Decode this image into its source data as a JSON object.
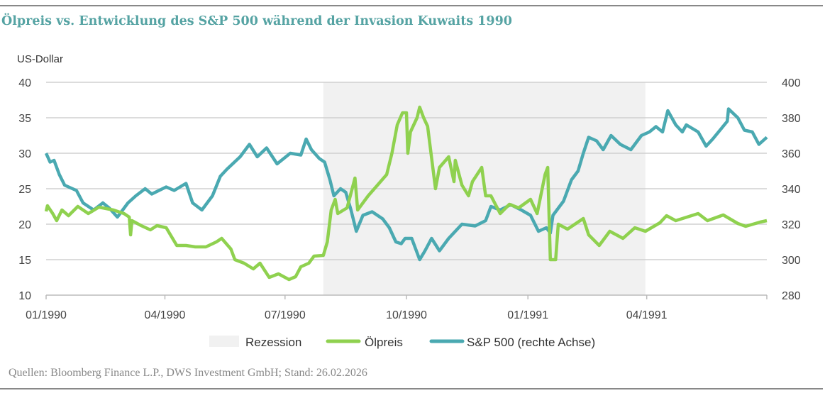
{
  "title": "Ölpreis vs. Entwicklung des S&P 500 während der Invasion Kuwaits 1990",
  "source": "Quellen: Bloomberg Finance L.P., DWS Investment GmbH; Stand: 26.02.2026",
  "chart_data": {
    "type": "line",
    "ylabel": "US-Dollar",
    "xlim": [
      "1990-01-01",
      "1991-07-01"
    ],
    "ylim": [
      10,
      40
    ],
    "y2lim": [
      280,
      400
    ],
    "x_ticks": [
      [
        "1990-01-01",
        "01/1990"
      ],
      [
        "1990-04-01",
        "04/1990"
      ],
      [
        "1990-07-01",
        "07/1990"
      ],
      [
        "1990-10-01",
        "10/1990"
      ],
      [
        "1991-01-01",
        "01/1991"
      ],
      [
        "1991-04-01",
        "04/1991"
      ]
    ],
    "y_ticks": [
      "10",
      "15",
      "20",
      "25",
      "30",
      "35",
      "40"
    ],
    "y2_ticks": [
      "280",
      "300",
      "320",
      "340",
      "360",
      "380",
      "400"
    ],
    "grid": true,
    "legend": "bottom",
    "recession": {
      "name": "Rezession",
      "start": "1990-07-30",
      "end": "1991-03-31",
      "color": "#f1f1f1"
    },
    "series": [
      {
        "name": "Ölpreis",
        "axis": "left",
        "color": "#8fd14f",
        "points": [
          [
            "1990-01-01",
            21.8
          ],
          [
            "1990-01-02",
            22.6
          ],
          [
            "1990-01-06",
            21.5
          ],
          [
            "1990-01-09",
            20.5
          ],
          [
            "1990-01-13",
            22
          ],
          [
            "1990-01-18",
            21.2
          ],
          [
            "1990-01-25",
            22.5
          ],
          [
            "1990-02-02",
            21.5
          ],
          [
            "1990-02-10",
            22.4
          ],
          [
            "1990-02-21",
            22
          ],
          [
            "1990-03-01",
            21.5
          ],
          [
            "1990-03-05",
            21
          ],
          [
            "1990-03-06",
            18.5
          ],
          [
            "1990-03-07",
            20.5
          ],
          [
            "1990-03-14",
            19.8
          ],
          [
            "1990-03-21",
            19.2
          ],
          [
            "1990-03-26",
            19.8
          ],
          [
            "1990-04-02",
            19.5
          ],
          [
            "1990-04-10",
            17
          ],
          [
            "1990-04-17",
            17
          ],
          [
            "1990-04-24",
            16.8
          ],
          [
            "1990-05-02",
            16.8
          ],
          [
            "1990-05-10",
            17.5
          ],
          [
            "1990-05-14",
            18
          ],
          [
            "1990-05-21",
            16.5
          ],
          [
            "1990-05-24",
            15
          ],
          [
            "1990-05-31",
            14.5
          ],
          [
            "1990-06-07",
            13.7
          ],
          [
            "1990-06-12",
            14.5
          ],
          [
            "1990-06-19",
            12.5
          ],
          [
            "1990-06-26",
            13
          ],
          [
            "1990-07-04",
            12.2
          ],
          [
            "1990-07-09",
            12.6
          ],
          [
            "1990-07-13",
            14
          ],
          [
            "1990-07-19",
            14.5
          ],
          [
            "1990-07-23",
            15.5
          ],
          [
            "1990-07-30",
            15.6
          ],
          [
            "1990-08-02",
            17.5
          ],
          [
            "1990-08-05",
            22
          ],
          [
            "1990-08-08",
            23.5
          ],
          [
            "1990-08-10",
            21.5
          ],
          [
            "1990-08-17",
            22.3
          ],
          [
            "1990-08-23",
            26.5
          ],
          [
            "1990-08-25",
            22
          ],
          [
            "1990-09-02",
            24
          ],
          [
            "1990-09-09",
            25.5
          ],
          [
            "1990-09-16",
            27
          ],
          [
            "1990-09-20",
            30
          ],
          [
            "1990-09-24",
            34
          ],
          [
            "1990-09-28",
            35.7
          ],
          [
            "1990-10-01",
            35.7
          ],
          [
            "1990-10-02",
            30
          ],
          [
            "1990-10-04",
            33
          ],
          [
            "1990-10-09",
            35
          ],
          [
            "1990-10-11",
            36.5
          ],
          [
            "1990-10-14",
            35
          ],
          [
            "1990-10-17",
            33.8
          ],
          [
            "1990-10-23",
            25
          ],
          [
            "1990-10-26",
            28
          ],
          [
            "1990-11-02",
            29.5
          ],
          [
            "1990-11-06",
            26
          ],
          [
            "1990-11-07",
            29
          ],
          [
            "1990-11-12",
            25.5
          ],
          [
            "1990-11-17",
            24
          ],
          [
            "1990-11-20",
            26
          ],
          [
            "1990-11-27",
            28
          ],
          [
            "1990-11-30",
            24
          ],
          [
            "1990-12-04",
            24
          ],
          [
            "1990-12-11",
            21.5
          ],
          [
            "1990-12-18",
            22.8
          ],
          [
            "1990-12-25",
            22.3
          ],
          [
            "1991-01-03",
            23.5
          ],
          [
            "1991-01-08",
            21.5
          ],
          [
            "1991-01-14",
            27
          ],
          [
            "1991-01-16",
            28
          ],
          [
            "1991-01-18",
            15
          ],
          [
            "1991-01-22",
            15
          ],
          [
            "1991-01-24",
            20
          ],
          [
            "1991-01-31",
            19.3
          ],
          [
            "1991-02-12",
            20.8
          ],
          [
            "1991-02-16",
            18.5
          ],
          [
            "1991-02-24",
            17
          ],
          [
            "1991-03-04",
            19
          ],
          [
            "1991-03-14",
            18
          ],
          [
            "1991-03-23",
            19.5
          ],
          [
            "1991-03-31",
            19
          ],
          [
            "1991-04-11",
            20.2
          ],
          [
            "1991-04-16",
            21.2
          ],
          [
            "1991-04-23",
            20.5
          ],
          [
            "1991-05-10",
            21.5
          ],
          [
            "1991-05-17",
            20.5
          ],
          [
            "1991-05-29",
            21.3
          ],
          [
            "1991-06-09",
            20.1
          ],
          [
            "1991-06-15",
            19.7
          ],
          [
            "1991-06-26",
            20.3
          ],
          [
            "1991-07-01",
            20.5
          ]
        ]
      },
      {
        "name": "S&P 500 (rechte Achse)",
        "axis": "right",
        "color": "#4aa9b1",
        "points": [
          [
            "1990-01-01",
            360
          ],
          [
            "1990-01-04",
            355
          ],
          [
            "1990-01-07",
            356
          ],
          [
            "1990-01-11",
            348
          ],
          [
            "1990-01-15",
            342
          ],
          [
            "1990-01-18",
            341
          ],
          [
            "1990-01-24",
            339
          ],
          [
            "1990-01-29",
            332
          ],
          [
            "1990-02-06",
            328
          ],
          [
            "1990-02-13",
            332
          ],
          [
            "1990-02-18",
            329
          ],
          [
            "1990-02-24",
            324
          ],
          [
            "1990-03-04",
            332
          ],
          [
            "1990-03-10",
            336
          ],
          [
            "1990-03-17",
            340
          ],
          [
            "1990-03-22",
            337
          ],
          [
            "1990-04-02",
            341
          ],
          [
            "1990-04-08",
            339
          ],
          [
            "1990-04-17",
            343
          ],
          [
            "1990-04-22",
            332
          ],
          [
            "1990-04-29",
            328
          ],
          [
            "1990-05-07",
            336
          ],
          [
            "1990-05-13",
            347
          ],
          [
            "1990-05-18",
            351
          ],
          [
            "1990-05-28",
            358
          ],
          [
            "1990-06-04",
            365
          ],
          [
            "1990-06-10",
            358
          ],
          [
            "1990-06-17",
            363
          ],
          [
            "1990-06-25",
            354
          ],
          [
            "1990-07-05",
            360
          ],
          [
            "1990-07-13",
            359
          ],
          [
            "1990-07-17",
            368
          ],
          [
            "1990-07-21",
            362
          ],
          [
            "1990-07-27",
            357
          ],
          [
            "1990-07-31",
            355
          ],
          [
            "1990-08-04",
            345
          ],
          [
            "1990-08-07",
            336
          ],
          [
            "1990-08-12",
            340
          ],
          [
            "1990-08-16",
            338
          ],
          [
            "1990-08-20",
            328
          ],
          [
            "1990-08-24",
            316
          ],
          [
            "1990-08-29",
            325
          ],
          [
            "1990-09-05",
            327
          ],
          [
            "1990-09-13",
            323
          ],
          [
            "1990-09-18",
            318
          ],
          [
            "1990-09-23",
            310
          ],
          [
            "1990-09-27",
            309
          ],
          [
            "1990-09-30",
            312
          ],
          [
            "1990-10-05",
            312
          ],
          [
            "1990-10-11",
            300
          ],
          [
            "1990-10-15",
            305
          ],
          [
            "1990-10-20",
            312
          ],
          [
            "1990-10-26",
            305
          ],
          [
            "1990-11-02",
            312
          ],
          [
            "1990-11-12",
            320
          ],
          [
            "1990-11-22",
            319
          ],
          [
            "1990-11-30",
            322
          ],
          [
            "1990-12-04",
            330
          ],
          [
            "1990-12-11",
            328
          ],
          [
            "1990-12-19",
            331
          ],
          [
            "1990-12-27",
            328
          ],
          [
            "1991-01-03",
            325
          ],
          [
            "1991-01-09",
            316
          ],
          [
            "1991-01-15",
            318
          ],
          [
            "1991-01-18",
            315
          ],
          [
            "1991-01-20",
            325
          ],
          [
            "1991-01-28",
            333
          ],
          [
            "1991-02-03",
            345
          ],
          [
            "1991-02-08",
            350
          ],
          [
            "1991-02-12",
            360
          ],
          [
            "1991-02-16",
            369
          ],
          [
            "1991-02-22",
            367
          ],
          [
            "1991-02-27",
            362
          ],
          [
            "1991-03-05",
            370
          ],
          [
            "1991-03-12",
            365
          ],
          [
            "1991-03-20",
            362
          ],
          [
            "1991-03-28",
            370
          ],
          [
            "1991-04-03",
            372
          ],
          [
            "1991-04-08",
            375
          ],
          [
            "1991-04-13",
            372
          ],
          [
            "1991-04-17",
            384
          ],
          [
            "1991-04-23",
            376
          ],
          [
            "1991-04-28",
            372
          ],
          [
            "1991-05-01",
            376
          ],
          [
            "1991-05-10",
            372
          ],
          [
            "1991-05-16",
            364
          ],
          [
            "1991-05-21",
            368
          ],
          [
            "1991-06-01",
            378
          ],
          [
            "1991-06-02",
            385
          ],
          [
            "1991-06-09",
            380
          ],
          [
            "1991-06-14",
            373
          ],
          [
            "1991-06-20",
            372
          ],
          [
            "1991-06-25",
            365
          ],
          [
            "1991-07-01",
            369
          ]
        ]
      }
    ]
  }
}
